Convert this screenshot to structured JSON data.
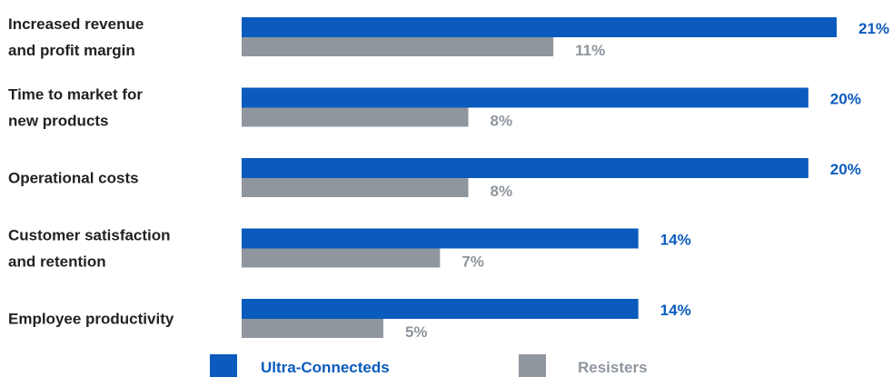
{
  "chart_data": {
    "type": "bar",
    "orientation": "horizontal",
    "categories": [
      [
        "Increased revenue",
        "and profit margin"
      ],
      [
        "Time to market for",
        "new products"
      ],
      [
        "Operational costs"
      ],
      [
        "Customer satisfaction",
        "and retention"
      ],
      [
        "Employee productivity"
      ]
    ],
    "series": [
      {
        "name": "Ultra-Connecteds",
        "color": "#0a5bbd",
        "values": [
          21,
          20,
          20,
          14,
          14
        ],
        "labels": [
          "21%",
          "20%",
          "20%",
          "14%",
          "14%"
        ]
      },
      {
        "name": "Resisters",
        "color": "#8f969e",
        "values": [
          11,
          8,
          8,
          7,
          5
        ],
        "labels": [
          "11%",
          "8%",
          "8%",
          "7%",
          "5%"
        ]
      }
    ],
    "xlim": [
      0,
      21
    ],
    "grid": false,
    "legend": "bottom"
  }
}
